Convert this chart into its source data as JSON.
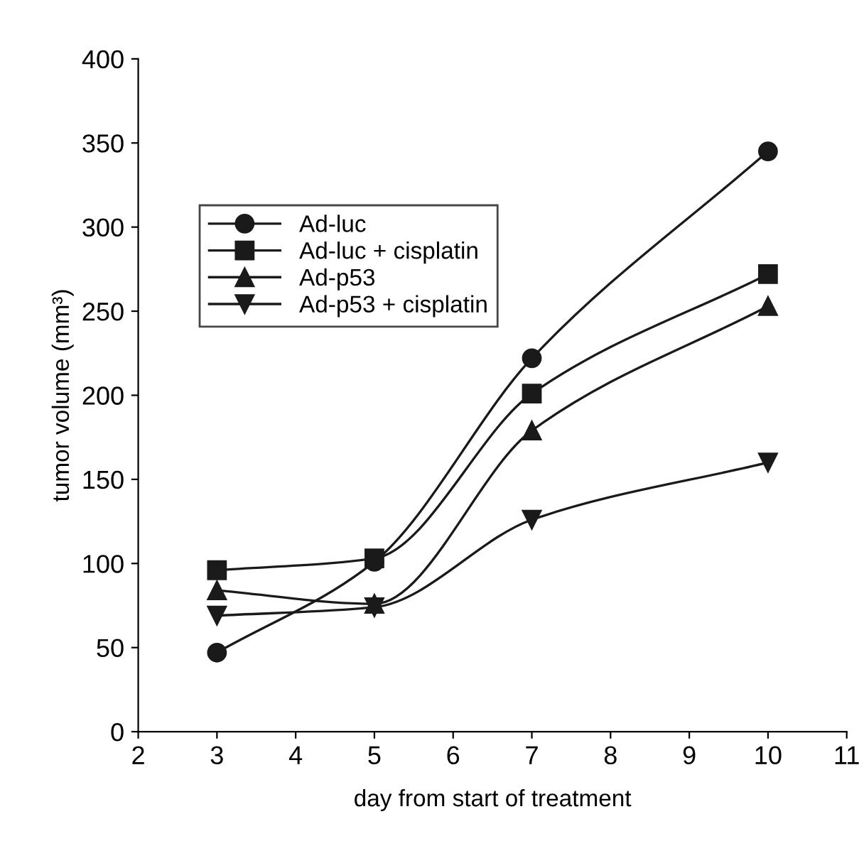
{
  "chart_data": {
    "type": "line",
    "xlabel": "day from start of treatment",
    "ylabel": "tumor volume (mm³)",
    "x": [
      3,
      5,
      7,
      10
    ],
    "series": [
      {
        "name": "Ad-luc",
        "color": "#1a1a1a",
        "marker": "circle",
        "values": [
          47,
          101,
          222,
          345
        ]
      },
      {
        "name": "Ad-luc + cisplatin",
        "color": "#1a1a1a",
        "marker": "square",
        "values": [
          96,
          103,
          201,
          272
        ]
      },
      {
        "name": "Ad-p53",
        "color": "#1a1a1a",
        "marker": "triangle",
        "values": [
          84,
          76,
          179,
          253
        ]
      },
      {
        "name": "Ad-p53 + cisplatin",
        "color": "#1a1a1a",
        "marker": "triangle_down",
        "values": [
          69,
          74,
          126,
          160
        ]
      }
    ],
    "xlim": [
      2,
      11
    ],
    "xticks": [
      2,
      3,
      4,
      5,
      6,
      7,
      8,
      9,
      10,
      11
    ],
    "ylim": [
      0,
      400
    ],
    "yticks": [
      0,
      50,
      100,
      150,
      200,
      250,
      300,
      350,
      400
    ],
    "grid": false,
    "legend": "top left",
    "line_style": "solid"
  }
}
